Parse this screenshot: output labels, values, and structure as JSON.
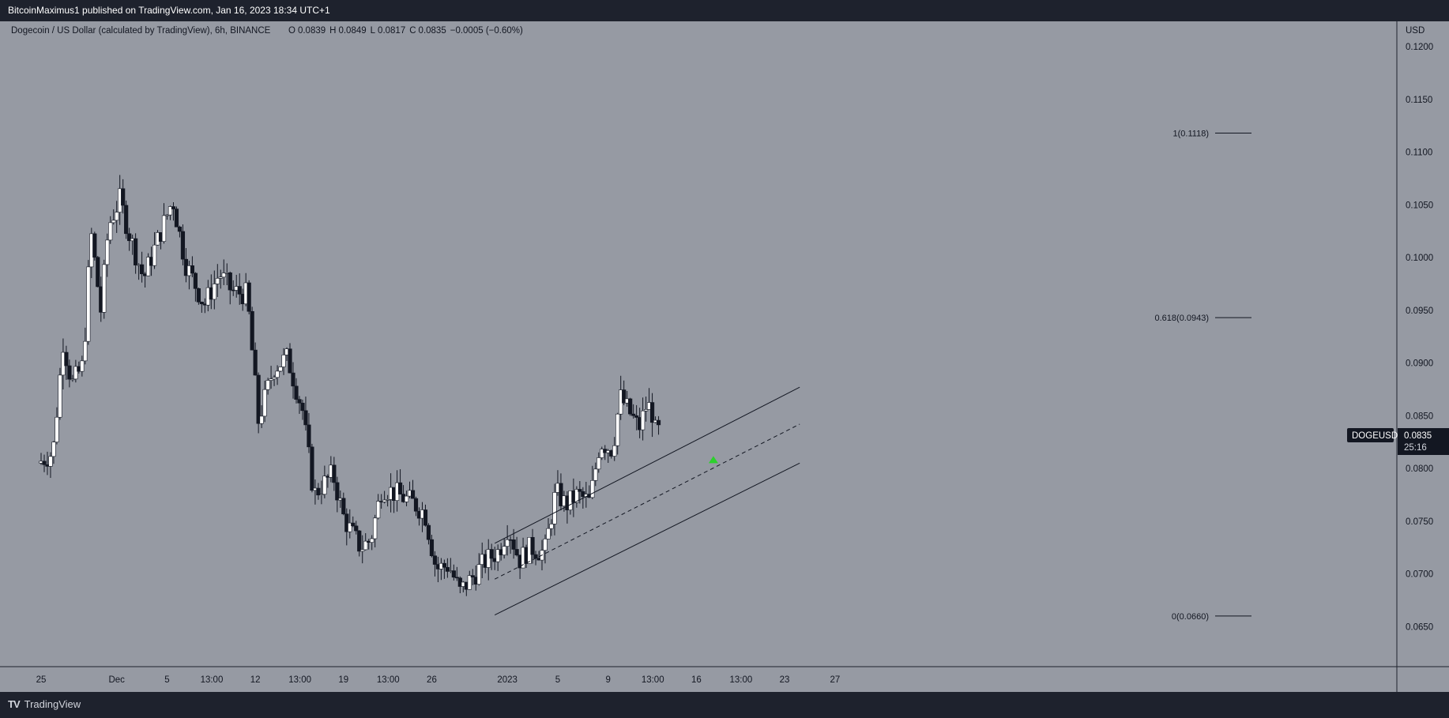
{
  "header": {
    "publisher_text": "BitcoinMaximus1 published on TradingView.com, Jan 16, 2023 18:34 UTC+1"
  },
  "footer": {
    "brand": "TradingView"
  },
  "chart_data": {
    "type": "candlestick",
    "title": "Dogecoin / US Dollar (calculated by TradingView), 6h, BINANCE",
    "ohlc_legend": {
      "o_label": "O",
      "o": "0.0839",
      "h_label": "H",
      "h": "0.0849",
      "l_label": "L",
      "l": "0.0817",
      "c_label": "C",
      "c": "0.0835",
      "change": "−0.0005 (−0.60%)"
    },
    "currency": "USD",
    "symbol": "DOGEUSD",
    "last_price": "0.0835",
    "countdown": "25:16",
    "ylim": [
      0.0612,
      0.1224
    ],
    "y_ticks": [
      "0.0650",
      "0.0700",
      "0.0750",
      "0.0800",
      "0.0850",
      "0.0900",
      "0.0950",
      "0.1000",
      "0.1050",
      "0.1100",
      "0.1150",
      "0.1200"
    ],
    "x_range_days": [
      -2,
      34
    ],
    "x_ticks": [
      {
        "label": "25",
        "day": 0
      },
      {
        "label": "Dec",
        "day": 6
      },
      {
        "label": "5",
        "day": 10
      },
      {
        "label": "13:00",
        "day": 13.54
      },
      {
        "label": "12",
        "day": 17
      },
      {
        "label": "13:00",
        "day": 20.54
      },
      {
        "label": "19",
        "day": 24
      },
      {
        "label": "13:00",
        "day": 27.54
      },
      {
        "label": "26",
        "day": 31
      },
      {
        "label": "2023",
        "day": 37
      },
      {
        "label": "5",
        "day": 41
      },
      {
        "label": "9",
        "day": 45
      },
      {
        "label": "13:00",
        "day": 48.54
      },
      {
        "label": "16",
        "day": 52
      },
      {
        "label": "13:00",
        "day": 55.54
      },
      {
        "label": "23",
        "day": 59
      },
      {
        "label": "27",
        "day": 63
      }
    ],
    "fibonacci": [
      {
        "label": "1(0.1118)",
        "value": 0.1118
      },
      {
        "label": "0.618(0.0943)",
        "value": 0.0943
      },
      {
        "label": "0(0.0660)",
        "value": 0.066
      }
    ],
    "channel": {
      "start_day": 36.0,
      "end_day": 60.2,
      "upper": [
        0.0729,
        0.0877
      ],
      "middle": [
        0.0695,
        0.0842
      ],
      "lower": [
        0.0661,
        0.0805
      ]
    },
    "marker": {
      "shape": "triangle-up",
      "day": 53.35,
      "value": 0.0808,
      "color": "#2cd12c"
    },
    "colors": {
      "background": "#969aa3",
      "up": "#ffffff",
      "down": "#131722",
      "axis": "#1e222d",
      "line": "#131722"
    },
    "anchors": [
      [
        0,
        0.0805
      ],
      [
        1.2,
        0.0815
      ],
      [
        2.0,
        0.092
      ],
      [
        2.7,
        0.088
      ],
      [
        3.6,
        0.0898
      ],
      [
        4.2,
        0.1025
      ],
      [
        5,
        0.095
      ],
      [
        5.6,
        0.103
      ],
      [
        6.5,
        0.1055
      ],
      [
        7.3,
        0.102
      ],
      [
        8.4,
        0.098
      ],
      [
        9.3,
        0.101
      ],
      [
        10.7,
        0.1055
      ],
      [
        11.7,
        0.0995
      ],
      [
        13.2,
        0.0955
      ],
      [
        14.4,
        0.0985
      ],
      [
        15.4,
        0.0968
      ],
      [
        16.6,
        0.0965
      ],
      [
        17.5,
        0.0845
      ],
      [
        18.7,
        0.0895
      ],
      [
        19.8,
        0.0905
      ],
      [
        21,
        0.0855
      ],
      [
        21.9,
        0.0775
      ],
      [
        23.4,
        0.0795
      ],
      [
        24.3,
        0.0752
      ],
      [
        25.6,
        0.0725
      ],
      [
        26.4,
        0.0732
      ],
      [
        27.3,
        0.0782
      ],
      [
        28.6,
        0.0775
      ],
      [
        29.7,
        0.0768
      ],
      [
        30.7,
        0.0758
      ],
      [
        31.6,
        0.0705
      ],
      [
        32.6,
        0.0708
      ],
      [
        33.5,
        0.0683
      ],
      [
        34.5,
        0.0697
      ],
      [
        35.5,
        0.0712
      ],
      [
        36.6,
        0.0722
      ],
      [
        37.3,
        0.0745
      ],
      [
        38.2,
        0.0713
      ],
      [
        39.1,
        0.0725
      ],
      [
        40.2,
        0.072
      ],
      [
        41.1,
        0.0778
      ],
      [
        41.9,
        0.0765
      ],
      [
        42.8,
        0.0775
      ],
      [
        43.8,
        0.0768
      ],
      [
        44.6,
        0.0825
      ],
      [
        45.6,
        0.0818
      ],
      [
        46.2,
        0.0868
      ],
      [
        47,
        0.0852
      ],
      [
        47.7,
        0.0838
      ],
      [
        48.3,
        0.086
      ],
      [
        48.7,
        0.0856
      ],
      [
        49,
        0.0835
      ]
    ]
  }
}
